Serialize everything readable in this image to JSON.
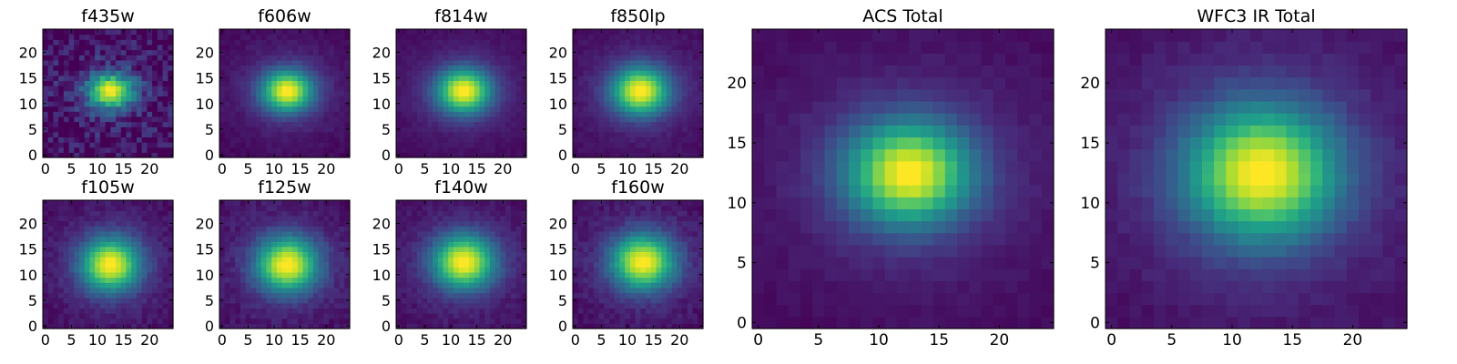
{
  "chart_data": [
    {
      "type": "heatmap",
      "title": "f435w",
      "xticks": [
        0,
        5,
        10,
        15,
        20
      ],
      "yticks": [
        0,
        5,
        10,
        15,
        20
      ],
      "xlim": [
        -0.5,
        24.5
      ],
      "ylim": [
        -0.5,
        24.5
      ],
      "colormap": "viridis",
      "center": [
        12.5,
        12.5
      ],
      "sigma": [
        3.0,
        2.4
      ],
      "noise": 0.28
    },
    {
      "type": "heatmap",
      "title": "f606w",
      "xticks": [
        0,
        5,
        10,
        15,
        20
      ],
      "yticks": [
        0,
        5,
        10,
        15,
        20
      ],
      "xlim": [
        -0.5,
        24.5
      ],
      "ylim": [
        -0.5,
        24.5
      ],
      "colormap": "viridis",
      "center": [
        12.5,
        12.5
      ],
      "sigma": [
        3.4,
        2.8
      ],
      "noise": 0.05
    },
    {
      "type": "heatmap",
      "title": "f814w",
      "xticks": [
        0,
        5,
        10,
        15,
        20
      ],
      "yticks": [
        0,
        5,
        10,
        15,
        20
      ],
      "xlim": [
        -0.5,
        24.5
      ],
      "ylim": [
        -0.5,
        24.5
      ],
      "colormap": "viridis",
      "center": [
        12.5,
        12.5
      ],
      "sigma": [
        3.6,
        3.0
      ],
      "noise": 0.04
    },
    {
      "type": "heatmap",
      "title": "f850lp",
      "xticks": [
        0,
        5,
        10,
        15,
        20
      ],
      "yticks": [
        0,
        5,
        10,
        15,
        20
      ],
      "xlim": [
        -0.5,
        24.5
      ],
      "ylim": [
        -0.5,
        24.5
      ],
      "colormap": "viridis",
      "center": [
        12.5,
        12.5
      ],
      "sigma": [
        3.8,
        3.2
      ],
      "noise": 0.05
    },
    {
      "type": "heatmap",
      "title": "f105w",
      "xticks": [
        0,
        5,
        10,
        15,
        20
      ],
      "yticks": [
        0,
        5,
        10,
        15,
        20
      ],
      "xlim": [
        -0.5,
        24.5
      ],
      "ylim": [
        -0.5,
        24.5
      ],
      "colormap": "viridis",
      "center": [
        12.5,
        12.0
      ],
      "sigma": [
        3.9,
        3.6
      ],
      "noise": 0.08
    },
    {
      "type": "heatmap",
      "title": "f125w",
      "xticks": [
        0,
        5,
        10,
        15,
        20
      ],
      "yticks": [
        0,
        5,
        10,
        15,
        20
      ],
      "xlim": [
        -0.5,
        24.5
      ],
      "ylim": [
        -0.5,
        24.5
      ],
      "colormap": "viridis",
      "center": [
        12.5,
        12.0
      ],
      "sigma": [
        4.1,
        3.7
      ],
      "noise": 0.09
    },
    {
      "type": "heatmap",
      "title": "f140w",
      "xticks": [
        0,
        5,
        10,
        15,
        20
      ],
      "yticks": [
        0,
        5,
        10,
        15,
        20
      ],
      "xlim": [
        -0.5,
        24.5
      ],
      "ylim": [
        -0.5,
        24.5
      ],
      "colormap": "viridis",
      "center": [
        12.5,
        12.5
      ],
      "sigma": [
        4.1,
        3.6
      ],
      "noise": 0.07
    },
    {
      "type": "heatmap",
      "title": "f160w",
      "xticks": [
        0,
        5,
        10,
        15,
        20
      ],
      "yticks": [
        0,
        5,
        10,
        15,
        20
      ],
      "xlim": [
        -0.5,
        24.5
      ],
      "ylim": [
        -0.5,
        24.5
      ],
      "colormap": "viridis",
      "center": [
        13.0,
        12.5
      ],
      "sigma": [
        4.2,
        3.7
      ],
      "noise": 0.09
    },
    {
      "type": "heatmap",
      "title": "ACS Total",
      "xticks": [
        0,
        5,
        10,
        15,
        20
      ],
      "yticks": [
        0,
        5,
        10,
        15,
        20
      ],
      "xlim": [
        -0.5,
        24.5
      ],
      "ylim": [
        -0.5,
        24.5
      ],
      "colormap": "viridis",
      "center": [
        12.5,
        12.5
      ],
      "sigma": [
        3.6,
        3.0
      ],
      "noise": 0.04
    },
    {
      "type": "heatmap",
      "title": "WFC3 IR Total",
      "xticks": [
        0,
        5,
        10,
        15,
        20
      ],
      "yticks": [
        0,
        5,
        10,
        15,
        20
      ],
      "xlim": [
        -0.5,
        24.5
      ],
      "ylim": [
        -0.5,
        24.5
      ],
      "colormap": "viridis",
      "center": [
        12.5,
        12.5
      ],
      "sigma": [
        4.4,
        3.9
      ],
      "noise": 0.05
    }
  ]
}
